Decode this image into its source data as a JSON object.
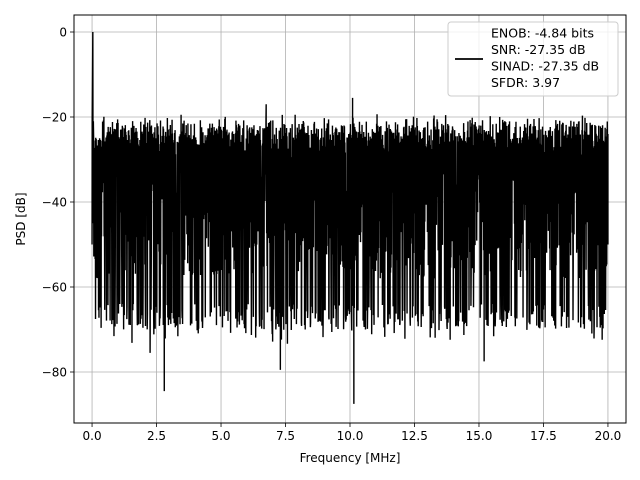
{
  "chart_data": {
    "type": "line",
    "title": "",
    "xlabel": "Frequency [MHz]",
    "ylabel": "PSD [dB]",
    "xlim": [
      -0.7,
      20.7
    ],
    "ylim": [
      -92,
      4
    ],
    "xticks": [
      0.0,
      2.5,
      5.0,
      7.5,
      10.0,
      12.5,
      15.0,
      17.5,
      20.0
    ],
    "xtick_labels": [
      "0.0",
      "2.5",
      "5.0",
      "7.5",
      "10.0",
      "12.5",
      "15.0",
      "17.5",
      "20.0"
    ],
    "yticks": [
      0,
      -20,
      -40,
      -60,
      -80
    ],
    "ytick_labels": [
      "0",
      "−20",
      "−40",
      "−60",
      "−80"
    ],
    "grid": true,
    "line_color": "#000000",
    "series": [
      {
        "x_range": [
          0,
          20
        ],
        "peak": {
          "x": 0.03,
          "y": 0
        },
        "upper_envelope_db": [
          -21,
          -20
        ],
        "lower_envelope_db": [
          -60,
          -70
        ],
        "notable_minima": [
          {
            "x": 2.8,
            "y": -84.5
          },
          {
            "x": 10.15,
            "y": -87.5
          },
          {
            "x": 2.25,
            "y": -75.5
          },
          {
            "x": 7.3,
            "y": -79.5
          },
          {
            "x": 15.2,
            "y": -77.5
          }
        ],
        "notable_maxima": [
          {
            "x": 10.1,
            "y": -15.5
          },
          {
            "x": 6.75,
            "y": -17
          }
        ]
      }
    ],
    "legend": {
      "placement": "top-right",
      "entries": [
        "ENOB: -4.84 bits",
        "SNR: -27.35 dB",
        "SINAD: -27.35 dB",
        "SFDR: 3.97"
      ]
    }
  }
}
